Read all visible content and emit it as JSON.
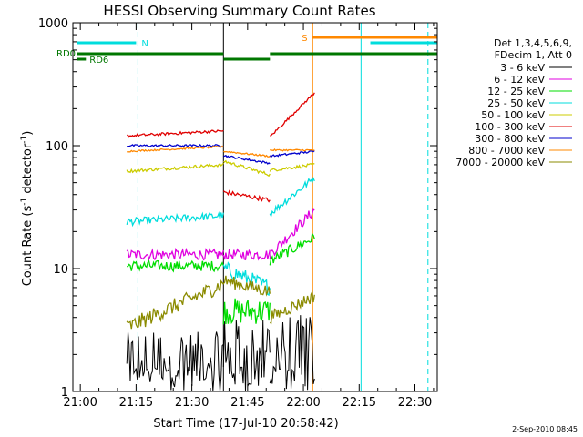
{
  "chart_data": {
    "type": "line",
    "title": "HESSI Observing Summary Count Rates",
    "xlabel": "Start Time (17-Jul-10 20:58:42)",
    "ylabel_main": "Count Rate (s",
    "ylabel_sup1": "-1",
    "ylabel_mid": " detector",
    "ylabel_sup2": "-1",
    "ylabel_end": ")",
    "ylog": true,
    "ylim": [
      1,
      1000
    ],
    "xlim_minutes": [
      -2,
      96
    ],
    "x_ticks": [
      {
        "label": "21:00",
        "min": 0
      },
      {
        "label": "21:15",
        "min": 15
      },
      {
        "label": "21:30",
        "min": 30
      },
      {
        "label": "21:45",
        "min": 45
      },
      {
        "label": "22:00",
        "min": 60
      },
      {
        "label": "22:15",
        "min": 75
      },
      {
        "label": "22:30",
        "min": 90
      }
    ],
    "y_ticks": [
      {
        "label": "1",
        "value": 1
      },
      {
        "label": "10",
        "value": 10
      },
      {
        "label": "100",
        "value": 100
      },
      {
        "label": "1000",
        "value": 1000
      }
    ],
    "legend_header": [
      "Det 1,3,4,5,6,9,",
      "FDecim 1, Att 0"
    ],
    "series": [
      {
        "name": "3 - 6 keV",
        "color": "#000000",
        "segments": [
          {
            "start": 12.5,
            "end": 38.5,
            "level": 1.8,
            "noise": 0.9
          },
          {
            "start": 38.5,
            "end": 51.0,
            "level": 2.3,
            "noise": 0.9
          },
          {
            "start": 51.0,
            "end": 63.0,
            "level": 2.0,
            "noise": 0.9,
            "rise_to": 3.0
          }
        ]
      },
      {
        "name": "6 - 12 keV",
        "color": "#e000e0",
        "segments": [
          {
            "start": 12.5,
            "end": 38.5,
            "level": 13,
            "noise": 0.1
          },
          {
            "start": 38.5,
            "end": 51.0,
            "level": 13,
            "noise": 0.1
          },
          {
            "start": 51.0,
            "end": 63.0,
            "level": 13,
            "noise": 0.1,
            "rise_to": 30
          }
        ]
      },
      {
        "name": "12 - 25 keV",
        "color": "#00dd00",
        "segments": [
          {
            "start": 12.5,
            "end": 38.5,
            "level": 10.5,
            "noise": 0.1
          },
          {
            "start": 38.5,
            "end": 51.0,
            "level": 4.5,
            "noise": 0.25
          },
          {
            "start": 51.0,
            "end": 63.0,
            "level": 11.5,
            "noise": 0.1,
            "rise_to": 18
          }
        ]
      },
      {
        "name": "25 - 50 keV",
        "color": "#00dddd",
        "segments": [
          {
            "start": 12.5,
            "end": 38.5,
            "level": 24,
            "noise": 0.07,
            "rise_to": 27
          },
          {
            "start": 38.5,
            "end": 51.0,
            "level": 10,
            "noise": 0.15,
            "rise_to": 7
          },
          {
            "start": 51.0,
            "end": 63.0,
            "level": 28,
            "noise": 0.07,
            "rise_to": 55
          }
        ]
      },
      {
        "name": "50 - 100 keV",
        "color": "#cccc00",
        "segments": [
          {
            "start": 12.5,
            "end": 38.5,
            "level": 62,
            "noise": 0.03,
            "rise_to": 70
          },
          {
            "start": 38.5,
            "end": 51.0,
            "level": 75,
            "noise": 0.03,
            "rise_to": 58
          },
          {
            "start": 51.0,
            "end": 63.0,
            "level": 63,
            "noise": 0.03,
            "rise_to": 70
          }
        ]
      },
      {
        "name": "100 - 300 keV",
        "color": "#e00000",
        "segments": [
          {
            "start": 12.5,
            "end": 38.5,
            "level": 120,
            "noise": 0.025,
            "rise_to": 132
          },
          {
            "start": 38.5,
            "end": 51.0,
            "level": 42,
            "noise": 0.04,
            "rise_to": 36
          },
          {
            "start": 51.0,
            "end": 63.0,
            "level": 118,
            "noise": 0.025,
            "rise_to": 270
          }
        ]
      },
      {
        "name": "300 - 800 keV",
        "color": "#0000cc",
        "segments": [
          {
            "start": 12.5,
            "end": 38.5,
            "level": 100,
            "noise": 0.02,
            "rise_to": 100
          },
          {
            "start": 38.5,
            "end": 51.0,
            "level": 83,
            "noise": 0.02,
            "rise_to": 72
          },
          {
            "start": 51.0,
            "end": 63.0,
            "level": 82,
            "noise": 0.02,
            "rise_to": 90
          }
        ]
      },
      {
        "name": "800 - 7000 keV",
        "color": "#ff8800",
        "segments": [
          {
            "start": 12.5,
            "end": 38.5,
            "level": 90,
            "noise": 0.015,
            "rise_to": 98
          },
          {
            "start": 38.5,
            "end": 51.0,
            "level": 90,
            "noise": 0.015,
            "rise_to": 82
          },
          {
            "start": 51.0,
            "end": 63.0,
            "level": 92,
            "noise": 0.015,
            "rise_to": 92
          }
        ]
      },
      {
        "name": "7000 - 20000 keV",
        "color": "#8b8b00",
        "segments": [
          {
            "start": 12.5,
            "end": 38.5,
            "level": 3.3,
            "noise": 0.15,
            "rise_to": 7.5
          },
          {
            "start": 38.5,
            "end": 51.0,
            "level": 8.0,
            "noise": 0.12,
            "rise_to": 6.5
          },
          {
            "start": 51.0,
            "end": 63.0,
            "level": 4.0,
            "noise": 0.12,
            "rise_to": 6.0
          }
        ]
      }
    ],
    "flags": {
      "n_label": "N",
      "s_label": "S",
      "rd0_label": "RD0",
      "rd6_label": "RD6",
      "n_color": "#00dddd",
      "s_color": "#ff8800",
      "rd_color": "#007700",
      "n_interval": [
        -1,
        15
      ],
      "s_interval": [
        62.5,
        96
      ],
      "cyan_top_interval": [
        78,
        96
      ],
      "rd0_intervals": [
        [
          -1,
          38.5
        ],
        [
          51,
          96
        ]
      ],
      "rd0_gap": [
        38.5,
        51
      ],
      "rd6_interval": [
        -1,
        1.5
      ]
    },
    "vlines": [
      {
        "min": 15.5,
        "color": "#00dddd",
        "dashed": true
      },
      {
        "min": 38.5,
        "color": "#000000",
        "dashed": false
      },
      {
        "min": 62.5,
        "color": "#ff8800",
        "dashed": false
      },
      {
        "min": 75.5,
        "color": "#00dddd",
        "dashed": false
      },
      {
        "min": 93.5,
        "color": "#00dddd",
        "dashed": true
      }
    ]
  },
  "footer_stamp": "2-Sep-2010 08:45"
}
